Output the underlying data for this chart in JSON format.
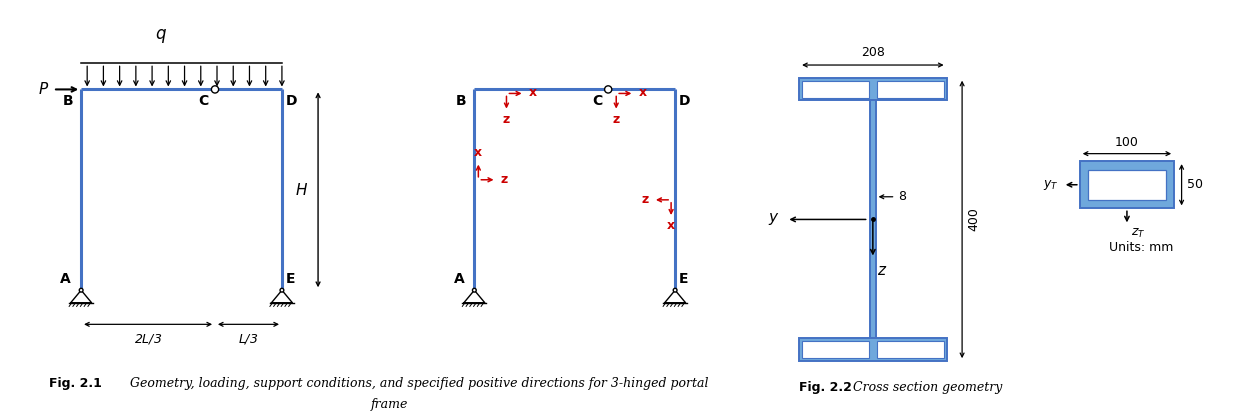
{
  "frame_color": "#4472C4",
  "frame_lw": 2.2,
  "ibeam_color": "#4472C4",
  "ibeam_edge": "#2e5fa3",
  "ibeam_fill": "#6fa8dc",
  "red_color": "#cc0000",
  "caption1_bold": "Fig. 2.1",
  "caption1_text": "   Geometry, loading, support conditions, and specified positive directions for 3-hinged portal",
  "caption1_text2": "frame",
  "caption2_bold": "Fig. 2.2",
  "caption2_text": "  Cross section geometry",
  "units_text": "Units: mm",
  "bg_color": "white"
}
